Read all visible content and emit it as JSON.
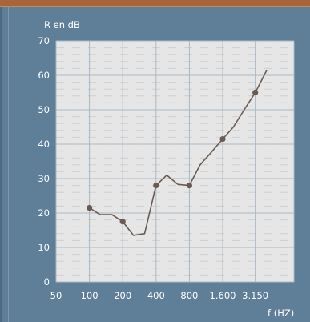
{
  "colors": {
    "background": "#5f7f99",
    "header_bar": "#a8643a",
    "plot_bg": "#e6e6e6",
    "grid_major": "#a9b8c4",
    "grid_minor": "#cfcfcf",
    "line": "#6a5a52",
    "text": "#ffffff"
  },
  "chart_data": {
    "type": "line",
    "title": "",
    "ylabel": "R en dB",
    "xlabel": "f (HZ)",
    "ylim": [
      0,
      70
    ],
    "yticks": [
      0,
      10,
      20,
      30,
      40,
      50,
      60,
      70
    ],
    "x_scale": "log (one-third-octave bands)",
    "xlim": [
      50,
      4000
    ],
    "xtick_labels": [
      "50",
      "100",
      "200",
      "400",
      "800",
      "1.600",
      "3.150"
    ],
    "xtick_values": [
      50,
      100,
      200,
      400,
      800,
      1600,
      3150
    ],
    "grid": true,
    "series": [
      {
        "x": [
          100,
          125,
          160,
          200,
          250,
          315,
          400,
          500,
          630,
          800,
          1000,
          1250,
          1600,
          2000,
          2500,
          3150,
          4000
        ],
        "y": [
          21.5,
          19.5,
          19.5,
          17.5,
          13.5,
          14,
          28,
          31,
          28.3,
          28,
          34,
          37.5,
          41.5,
          45,
          50,
          55,
          61.5
        ],
        "markers_at": [
          100,
          200,
          400,
          800,
          1600,
          3150
        ]
      }
    ]
  }
}
